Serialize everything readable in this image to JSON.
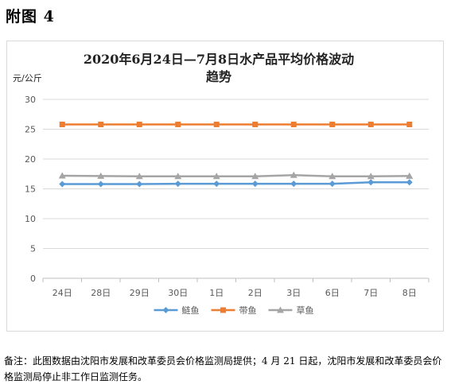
{
  "page": {
    "heading": "附图 4",
    "note": "备注：此图数据由沈阳市发展和改革委员会价格监测局提供；4 月 21 日起，沈阳市发展和改革委员会价格监测局停止非工作日监测任务。"
  },
  "chart_data": {
    "type": "line",
    "title_line1": "2020年6月24日—7月8日水产品平均价格波动",
    "title_line2": "趋势",
    "ylabel": "元/公斤",
    "xlabel": "",
    "ylim": [
      0,
      30
    ],
    "yticks": [
      "0",
      "5",
      "10",
      "15",
      "20",
      "25",
      "30"
    ],
    "categories": [
      "24日",
      "28日",
      "29日",
      "30日",
      "1日",
      "2日",
      "3日",
      "6日",
      "7日",
      "8日"
    ],
    "grid": true,
    "legend_position": "bottom",
    "series": [
      {
        "name": "鲢鱼",
        "color": "#5b9bd5",
        "marker": "diamond",
        "values": [
          15.8,
          15.8,
          15.8,
          15.85,
          15.85,
          15.85,
          15.85,
          15.85,
          16.1,
          16.1
        ]
      },
      {
        "name": "带鱼",
        "color": "#ed7d31",
        "marker": "square",
        "values": [
          25.8,
          25.8,
          25.8,
          25.8,
          25.8,
          25.8,
          25.8,
          25.8,
          25.8,
          25.8
        ]
      },
      {
        "name": "草鱼",
        "color": "#a5a5a5",
        "marker": "triangle",
        "values": [
          17.2,
          17.15,
          17.1,
          17.1,
          17.1,
          17.1,
          17.3,
          17.1,
          17.1,
          17.15
        ]
      }
    ]
  }
}
